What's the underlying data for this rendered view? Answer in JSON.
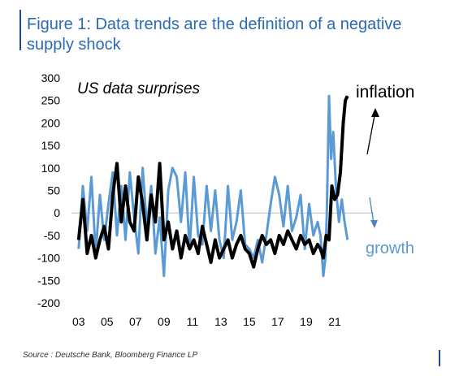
{
  "title": {
    "line1": "Figure 1: Data trends are the definition of a negative",
    "line2": "supply shock"
  },
  "source": "Source : Deutsche Bank, Bloomberg Finance LP",
  "colors": {
    "inflation": "#000000",
    "growth": "#5b9bd5",
    "title": "#2a6ab3",
    "zero_line": "#bfbfbf"
  },
  "chart_data": {
    "type": "line",
    "annotation": "US data surprises",
    "ylim": [
      -200,
      300
    ],
    "yticks": [
      300,
      250,
      200,
      150,
      100,
      50,
      0,
      -50,
      -100,
      -150,
      -200
    ],
    "xlim": [
      2002.5,
      2022.6
    ],
    "xticks": [
      {
        "label": "03",
        "value": 2003
      },
      {
        "label": "05",
        "value": 2005
      },
      {
        "label": "07",
        "value": 2007
      },
      {
        "label": "09",
        "value": 2009
      },
      {
        "label": "11",
        "value": 2011
      },
      {
        "label": "13",
        "value": 2013
      },
      {
        "label": "15",
        "value": 2015
      },
      {
        "label": "17",
        "value": 2017
      },
      {
        "label": "19",
        "value": 2019
      },
      {
        "label": "21",
        "value": 2021
      }
    ],
    "series": [
      {
        "name": "growth",
        "color": "#5b9bd5",
        "width": 3,
        "x": [
          2003.0,
          2003.3,
          2003.6,
          2003.9,
          2004.2,
          2004.5,
          2004.8,
          2005.1,
          2005.4,
          2005.7,
          2006.0,
          2006.3,
          2006.6,
          2006.9,
          2007.2,
          2007.5,
          2007.8,
          2008.1,
          2008.4,
          2008.7,
          2009.0,
          2009.3,
          2009.6,
          2009.9,
          2010.2,
          2010.5,
          2010.8,
          2011.1,
          2011.4,
          2011.7,
          2012.0,
          2012.3,
          2012.6,
          2012.9,
          2013.2,
          2013.5,
          2013.8,
          2014.1,
          2014.4,
          2014.7,
          2015.0,
          2015.3,
          2015.6,
          2015.9,
          2016.2,
          2016.5,
          2016.8,
          2017.1,
          2017.4,
          2017.7,
          2018.0,
          2018.3,
          2018.6,
          2018.9,
          2019.2,
          2019.5,
          2019.8,
          2020.0,
          2020.2,
          2020.35,
          2020.45,
          2020.6,
          2020.75,
          2020.9,
          2021.1,
          2021.3,
          2021.5,
          2021.7,
          2021.9
        ],
        "values": [
          -80,
          60,
          -40,
          80,
          -90,
          40,
          -60,
          20,
          90,
          -50,
          60,
          -60,
          90,
          -10,
          -90,
          100,
          -30,
          60,
          -90,
          -10,
          -140,
          50,
          100,
          80,
          -20,
          90,
          -80,
          80,
          -50,
          -70,
          60,
          -40,
          50,
          -60,
          -100,
          60,
          -60,
          -20,
          50,
          -70,
          -80,
          -100,
          -60,
          -110,
          -50,
          20,
          80,
          40,
          -30,
          60,
          -40,
          -10,
          40,
          -80,
          20,
          -50,
          -20,
          -50,
          -140,
          -100,
          0,
          260,
          120,
          180,
          50,
          -20,
          30,
          -20,
          -60
        ]
      },
      {
        "name": "inflation",
        "color": "#000000",
        "width": 4,
        "x": [
          2003.0,
          2003.3,
          2003.6,
          2003.9,
          2004.2,
          2004.5,
          2004.8,
          2005.1,
          2005.4,
          2005.7,
          2006.0,
          2006.3,
          2006.6,
          2006.9,
          2007.2,
          2007.5,
          2007.8,
          2008.1,
          2008.4,
          2008.7,
          2009.0,
          2009.3,
          2009.6,
          2009.9,
          2010.2,
          2010.5,
          2010.8,
          2011.1,
          2011.4,
          2011.7,
          2012.0,
          2012.3,
          2012.6,
          2012.9,
          2013.2,
          2013.5,
          2013.8,
          2014.1,
          2014.4,
          2014.7,
          2015.0,
          2015.3,
          2015.6,
          2015.9,
          2016.2,
          2016.5,
          2016.8,
          2017.1,
          2017.4,
          2017.7,
          2018.0,
          2018.3,
          2018.6,
          2018.9,
          2019.2,
          2019.5,
          2019.8,
          2020.0,
          2020.2,
          2020.4,
          2020.6,
          2020.8,
          2021.0,
          2021.2,
          2021.4,
          2021.6,
          2021.75,
          2021.9
        ],
        "values": [
          -60,
          30,
          -90,
          -50,
          -100,
          -60,
          -30,
          -80,
          40,
          110,
          -20,
          60,
          -20,
          -40,
          80,
          20,
          -60,
          40,
          -20,
          110,
          -60,
          -20,
          -80,
          -40,
          -100,
          -50,
          -80,
          -60,
          -90,
          -30,
          -70,
          -110,
          -60,
          -100,
          -80,
          -60,
          -100,
          -70,
          -50,
          -80,
          -90,
          -120,
          -80,
          -50,
          -70,
          -60,
          -90,
          -50,
          -70,
          -40,
          -60,
          -80,
          -50,
          -70,
          -60,
          -90,
          -70,
          -80,
          -100,
          -50,
          -60,
          60,
          30,
          40,
          90,
          200,
          250,
          260
        ]
      }
    ],
    "labels": {
      "inflation": "inflation",
      "growth": "growth"
    }
  }
}
